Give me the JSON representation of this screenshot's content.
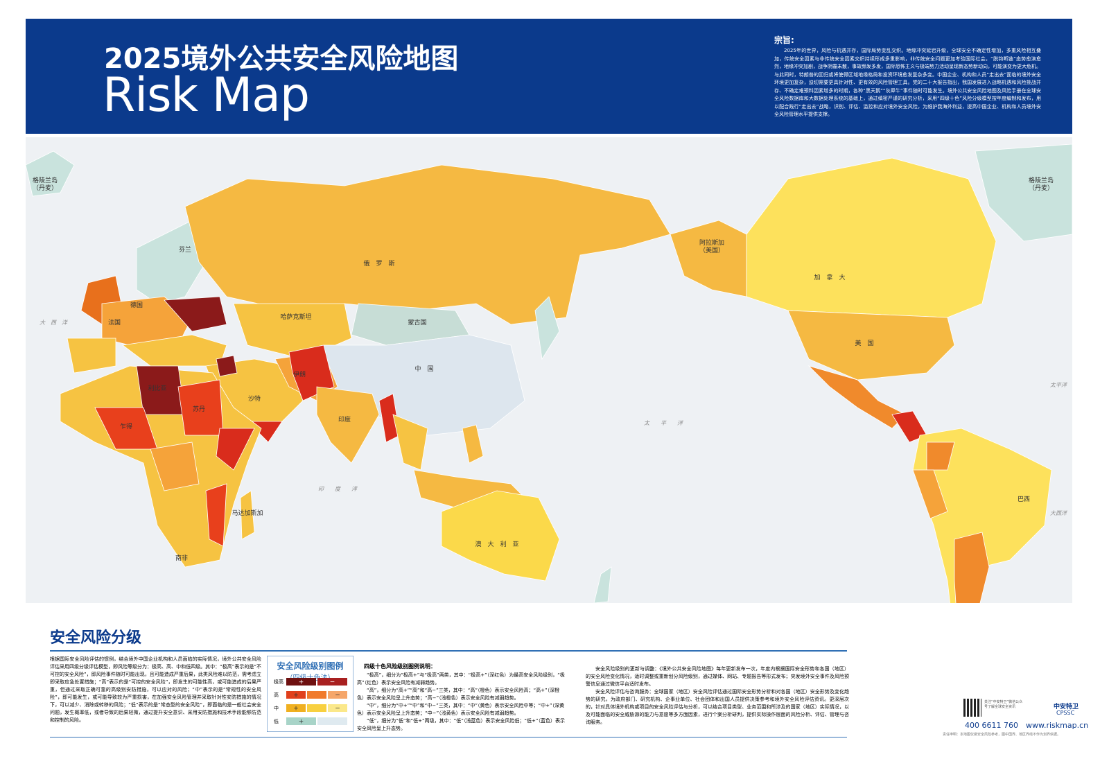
{
  "header": {
    "title": "2025境外公共安全风险地图",
    "subtitle": "Risk Map"
  },
  "purpose": {
    "heading": "宗旨:",
    "text": "2025年的世界，风险与机遇并存，国际局势变乱交织。地缘冲突延宕升级，全球安全不确定性增加，多重风险相互叠加，传统安全因素与非传统安全因素交织持续形成多重影响，非传统安全问题更加考验国际社会。“脱钩断链”态势愈演愈烈，地缘冲突加剧，战争阴霾未散，事故频发多发，国际恐怖主义与极端势力活动呈现新态势新动向，可能演变为更大危机。与此同时，特朗普的回归或将使得区域地缘格局和投资环境愈发复杂多变。中国企业、机构和人员“走出去”面临的境外安全环境更加复杂，迫切需要更具针对性、更有效的风险管理工具。党的二十大报告指出，我国发展进入战略机遇和风险挑战并存、不确定难预料因素增多的时期，各种“黑天鹅”“灰犀牛”事件随时可能发生。境外公共安全风险地图及风险手册在全球安全风险数据库和大数据处理系统的基础上，通过缜密严谨的研究分析，采用“四级十色”风险分级模型按年度编制和发布，用以配合践行“走出去”战略，识别、评估、监控和应对境外安全风险，为维护我海外利益，提高中国企业、机构和人员境外安全风险管理水平提供支撑。"
  },
  "map": {
    "labels": [
      "俄　罗　斯",
      "加　拿　大",
      "美　国",
      "中　国",
      "蒙古国",
      "哈萨克斯坦",
      "印度",
      "澳　大　利　亚",
      "巴西",
      "阿拉斯加\n（美国）",
      "格陵兰岛\n（丹麦）",
      "格陵兰岛\n（丹麦）",
      "南非",
      "马达加斯加",
      "大　西　洋",
      "太　　平　　洋",
      "印　　度　　洋",
      "大西洋",
      "太平洋",
      "芬兰",
      "德国",
      "法国",
      "利比亚",
      "苏丹",
      "乍得",
      "伊朗",
      "沙特"
    ]
  },
  "section": {
    "title": "安全风险分级",
    "text": "根据国际安全风险评估的惯例，结合境外中国企业机构和人员面临的实际情况，境外公共安全风险评估采用四级分级评估模型，即风险等级分为：极高、高、中和低四级。其中：“极高”表示的是“不可控的安全风险”，即风险事件随时可能出现，且可能造成严重后果，此类风险难以防范，需考虑立即采取应急处置措施；“高”表示的是“可控的安全风险”，即发生的可能性高，或可能造成的后果严重，但通过采取正确可靠的高级别安防措施，可以应对的风险；“中”表示的是“常规性的安全风险”，即可能发生，或可能导致较为严重损害，在加强安全风险管理并采取针对性安防措施的情况下，可以减少、消除或转移的风险；“低”表示的是“常态型的安全风险”，即面临的是一般社会安全问题，发生概率低，或者导致的后果轻微，通过提升安全意识、采用安防措施和技术手段能够防范和控制的风险。"
  },
  "legend": {
    "title": "安全风险级别图例",
    "subtitle": "（四级十色法）",
    "levels": [
      {
        "name": "极高",
        "signs": [
          "+",
          "−"
        ]
      },
      {
        "name": "高",
        "signs": [
          "+",
          "",
          "−"
        ]
      },
      {
        "name": "中",
        "signs": [
          "+",
          "",
          "−"
        ]
      },
      {
        "name": "低",
        "signs": [
          "+",
          ""
        ]
      }
    ],
    "heading": "四级十色风险级别图例说明：",
    "notes": [
      "“极高”，细分为“极高+”与“极高”两类，其中：“极高+”（深红色）为最高安全风险级别，“极高”（红色）表示安全风险有减弱趋势。",
      "“高”，细分为“高+”“高”和“高−”三类，其中：“高”（橙色）表示安全风险高；“高+”（深橙色）表示安全风险呈上升态势；“高−”（浅橙色）表示安全风险有减弱趋势。",
      "“中”，细分为“中+”“中”和“中−”三类，其中：“中”（黄色）表示安全风险中等；“中+”（深黄色）表示安全风险呈上升态势；“中−”（浅黄色）表示安全风险有减弱趋势。",
      "“低”，细分为“低”和“低+”两级，其中：“低”（浅蓝色）表示安全风险低；“低+”（蓝色）表示安全风险呈上升态势。"
    ]
  },
  "updates": [
    "安全风险级别的更新与调整：《境外公共安全风险地图》每年更新发布一次，年度内根据国际安全形势和各国（地区）的安全风险变化情况，适时调整或重新划分风险级别，通过媒体、网站、专题报告等形式发布；突发境外安全事件及风险预警信息通过微信平台适时发布。",
    "安全风险评估与咨询服务：全球国家（地区）安全风险评估通过国际安全形势分析和对各国（地区）安全形势及变化趋势的研究，为政府部门、研究机构、企事业单位、社会团体和出国人员提供决策参考和境外安全风险评估资讯。更深层次的，针对具体境外机构或项目的安全风险评估与分析，可以结合项目类型、业务范围和所涉及的国家（地区）实际情况，以及可能面临的安全威胁源的能力与意愿等多方面因素，进行个案分析研判，提供实际操作层面的风险分析、评估、管理与咨询服务。"
  ],
  "contact": {
    "qr_note": "关注“中安特卫”微信公众号了解全球安全资讯",
    "brand": "中安特卫",
    "brand_en": "CPSSC",
    "phone": "400 6611 760",
    "website": "www.riskmap.cn"
  },
  "footer": "责任申明：本地图仅做安全风险参考，图中国界、地区界线不作为划界依据。"
}
